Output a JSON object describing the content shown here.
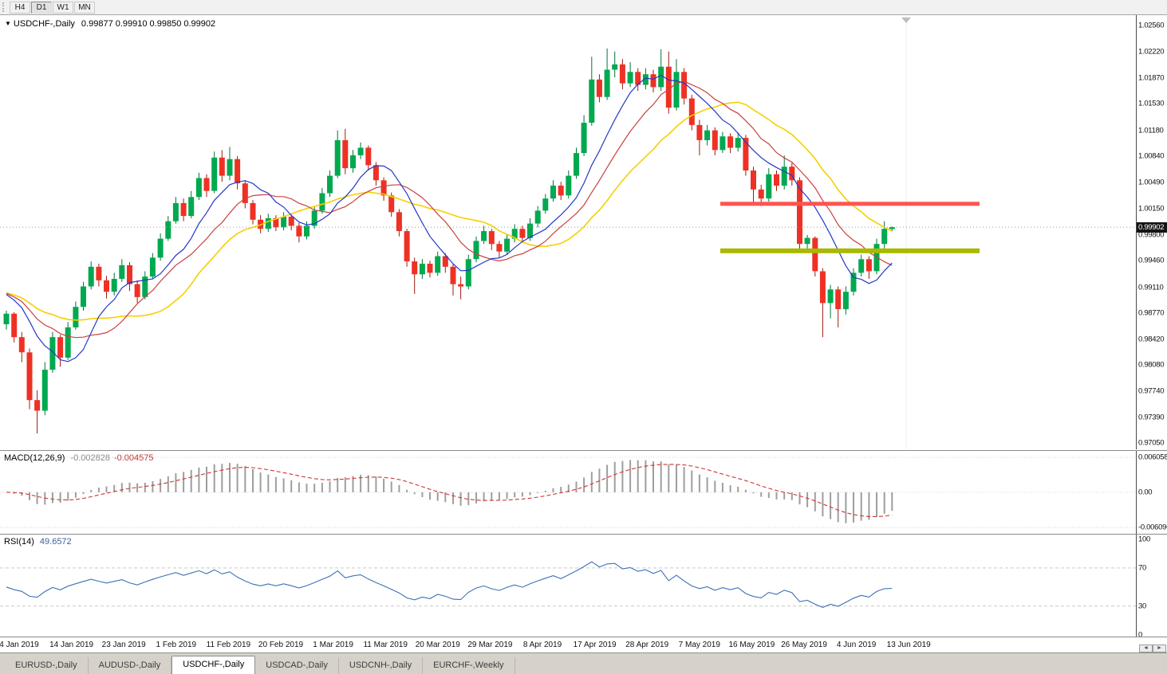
{
  "toolbar": {
    "periods": [
      {
        "label": "H4",
        "active": false
      },
      {
        "label": "D1",
        "active": true
      },
      {
        "label": "W1",
        "active": false
      },
      {
        "label": "MN",
        "active": false
      }
    ]
  },
  "window": {
    "title_marker": "▼",
    "symbol_title": "USDCHF-,Daily",
    "ohlc_text": "0.99877 0.99910 0.99850 0.99902"
  },
  "price_axis": {
    "ticks": [
      "1.02560",
      "1.02220",
      "1.01870",
      "1.01530",
      "1.01180",
      "1.00840",
      "1.00490",
      "1.00150",
      "0.99800",
      "0.99460",
      "0.99110",
      "0.98770",
      "0.98420",
      "0.98080",
      "0.97740",
      "0.97390",
      "0.97050"
    ],
    "current_badge": "0.99902"
  },
  "macd_panel": {
    "name": "MACD(12,26,9)",
    "main_value": "-0.002828",
    "signal_value": "-0.004575",
    "ticks": [
      "0.006058",
      "0.00",
      "-0.006096"
    ]
  },
  "rsi_panel": {
    "name": "RSI(14)",
    "value": "49.6572",
    "ticks": [
      "100",
      "70",
      "30",
      "0"
    ]
  },
  "date_axis": [
    "4 Jan 2019",
    "14 Jan 2019",
    "23 Jan 2019",
    "1 Feb 2019",
    "11 Feb 2019",
    "20 Feb 2019",
    "1 Mar 2019",
    "11 Mar 2019",
    "20 Mar 2019",
    "29 Mar 2019",
    "8 Apr 2019",
    "17 Apr 2019",
    "28 Apr 2019",
    "7 May 2019",
    "16 May 2019",
    "26 May 2019",
    "4 Jun 2019",
    "13 Jun 2019"
  ],
  "scrollbar": {
    "left": "◄",
    "right": "►"
  },
  "tabs": [
    {
      "label": "EURUSD-,Daily",
      "active": false
    },
    {
      "label": "AUDUSD-,Daily",
      "active": false
    },
    {
      "label": "USDCHF-,Daily",
      "active": true
    },
    {
      "label": "USDCAD-,Daily",
      "active": false
    },
    {
      "label": "USDCNH-,Daily",
      "active": false
    },
    {
      "label": "EURCHF-,Weekly",
      "active": false
    }
  ],
  "chart_data": {
    "type": "candlestick",
    "symbol": "USDCHF-",
    "timeframe": "Daily",
    "current_bar": {
      "open": 0.99877,
      "high": 0.9991,
      "low": 0.9985,
      "close": 0.99902
    },
    "y_axis": {
      "draw_max": 1.027,
      "draw_min": 0.9697,
      "top_label": 1.0256,
      "bottom_label": 0.9705
    },
    "moving_averages": [
      {
        "name": "fast",
        "period": 8,
        "color": "#2438c8",
        "width": 1.2
      },
      {
        "name": "medium",
        "period": 13,
        "color": "#c94040",
        "width": 1.2
      },
      {
        "name": "slow",
        "period": 21,
        "color": "#f5d000",
        "width": 1.6
      }
    ],
    "horizontal_lines": [
      {
        "price": 1.0021,
        "color": "#ff5450",
        "thickness": 5
      },
      {
        "price": 0.9959,
        "color": "#a9b800",
        "thickness": 6
      }
    ],
    "macd": {
      "fast": 12,
      "slow": 26,
      "signal_period": 9,
      "main_value": -0.002828,
      "signal_value": -0.004575,
      "ax_max": 0.006058,
      "ax_min": -0.006096
    },
    "rsi": {
      "period": 14,
      "value": 49.6572,
      "levels": [
        70,
        30
      ]
    },
    "candles": [
      [
        0.9862,
        0.988,
        0.9855,
        0.9876
      ],
      [
        0.9876,
        0.9878,
        0.9838,
        0.9845
      ],
      [
        0.9845,
        0.9852,
        0.9812,
        0.9825
      ],
      [
        0.9825,
        0.983,
        0.975,
        0.9762
      ],
      [
        0.9762,
        0.9775,
        0.9718,
        0.9748
      ],
      [
        0.9748,
        0.9812,
        0.9742,
        0.9802
      ],
      [
        0.9802,
        0.9852,
        0.9798,
        0.9845
      ],
      [
        0.9845,
        0.9848,
        0.9806,
        0.9818
      ],
      [
        0.9818,
        0.9865,
        0.9815,
        0.9858
      ],
      [
        0.9858,
        0.9892,
        0.9855,
        0.9885
      ],
      [
        0.9885,
        0.9918,
        0.988,
        0.9912
      ],
      [
        0.9912,
        0.9945,
        0.9908,
        0.9938
      ],
      [
        0.9938,
        0.9942,
        0.9912,
        0.992
      ],
      [
        0.992,
        0.9926,
        0.9896,
        0.9905
      ],
      [
        0.9905,
        0.993,
        0.99,
        0.9922
      ],
      [
        0.9922,
        0.9948,
        0.9918,
        0.994
      ],
      [
        0.994,
        0.9944,
        0.9906,
        0.9915
      ],
      [
        0.9915,
        0.992,
        0.989,
        0.9898
      ],
      [
        0.9898,
        0.9932,
        0.9895,
        0.9925
      ],
      [
        0.9925,
        0.9956,
        0.9922,
        0.995
      ],
      [
        0.995,
        0.9982,
        0.9946,
        0.9975
      ],
      [
        0.9975,
        1.0005,
        0.9972,
        0.9998
      ],
      [
        0.9998,
        1.003,
        0.9995,
        1.0022
      ],
      [
        1.0022,
        1.0028,
        0.9998,
        1.0005
      ],
      [
        1.0005,
        1.0038,
        1.0002,
        1.003
      ],
      [
        1.003,
        1.0062,
        1.0026,
        1.0055
      ],
      [
        1.0055,
        1.006,
        1.003,
        1.0038
      ],
      [
        1.0038,
        1.009,
        1.0035,
        1.0082
      ],
      [
        1.0082,
        1.0092,
        1.005,
        1.0058
      ],
      [
        1.0058,
        1.0096,
        1.0052,
        1.008
      ],
      [
        1.008,
        1.0084,
        1.004,
        1.0048
      ],
      [
        1.0048,
        1.0052,
        1.0015,
        1.0022
      ],
      [
        1.0022,
        1.0026,
        0.9994,
        1.0
      ],
      [
        1.0,
        1.0006,
        0.9982,
        0.9988
      ],
      [
        0.9988,
        1.0008,
        0.9984,
        1.0002
      ],
      [
        1.0002,
        1.0006,
        0.9985,
        0.999
      ],
      [
        0.999,
        1.001,
        0.9986,
        1.0004
      ],
      [
        1.0004,
        1.0008,
        0.9986,
        0.9992
      ],
      [
        0.9992,
        0.9996,
        0.997,
        0.9978
      ],
      [
        0.9978,
        0.9998,
        0.9974,
        0.9992
      ],
      [
        0.9992,
        1.0018,
        0.9988,
        1.0012
      ],
      [
        1.0012,
        1.0042,
        1.0008,
        1.0035
      ],
      [
        1.0035,
        1.0065,
        1.003,
        1.0058
      ],
      [
        1.0058,
        1.0118,
        1.0055,
        1.0105
      ],
      [
        1.0105,
        1.012,
        1.006,
        1.0068
      ],
      [
        1.0068,
        1.0092,
        1.0062,
        1.0085
      ],
      [
        1.0085,
        1.0102,
        1.008,
        1.0095
      ],
      [
        1.0095,
        1.0098,
        1.0065,
        1.0072
      ],
      [
        1.0072,
        1.0076,
        1.0045,
        1.0052
      ],
      [
        1.0052,
        1.0056,
        1.0025,
        1.0032
      ],
      [
        1.0032,
        1.0036,
        1.0004,
        1.001
      ],
      [
        1.001,
        1.0014,
        0.9978,
        0.9985
      ],
      [
        0.9985,
        0.9988,
        0.9938,
        0.9945
      ],
      [
        0.9945,
        0.995,
        0.9902,
        0.9928
      ],
      [
        0.9928,
        0.9948,
        0.9922,
        0.9942
      ],
      [
        0.9942,
        0.9946,
        0.9924,
        0.993
      ],
      [
        0.993,
        0.9958,
        0.9926,
        0.9952
      ],
      [
        0.9952,
        0.9956,
        0.993,
        0.9938
      ],
      [
        0.9938,
        0.9942,
        0.99,
        0.9915
      ],
      [
        0.9915,
        0.9925,
        0.9895,
        0.9912
      ],
      [
        0.9912,
        0.9954,
        0.9908,
        0.9948
      ],
      [
        0.9948,
        0.9978,
        0.9944,
        0.9972
      ],
      [
        0.9972,
        0.9992,
        0.9968,
        0.9985
      ],
      [
        0.9985,
        0.9988,
        0.996,
        0.9968
      ],
      [
        0.9968,
        0.9972,
        0.995,
        0.9958
      ],
      [
        0.9958,
        0.998,
        0.9954,
        0.9975
      ],
      [
        0.9975,
        0.9994,
        0.997,
        0.9988
      ],
      [
        0.9988,
        0.9992,
        0.997,
        0.9976
      ],
      [
        0.9976,
        1.0002,
        0.9972,
        0.9995
      ],
      [
        0.9995,
        1.0018,
        0.999,
        1.0012
      ],
      [
        1.0012,
        1.0034,
        1.0008,
        1.0028
      ],
      [
        1.0028,
        1.0052,
        1.0024,
        1.0045
      ],
      [
        1.0045,
        1.005,
        1.0026,
        1.0032
      ],
      [
        1.0032,
        1.0065,
        1.0028,
        1.0058
      ],
      [
        1.0058,
        1.0095,
        1.0054,
        1.0088
      ],
      [
        1.0088,
        1.0138,
        1.0084,
        1.0128
      ],
      [
        1.0128,
        1.0215,
        1.0124,
        1.0185
      ],
      [
        1.0185,
        1.0192,
        1.0155,
        1.0162
      ],
      [
        1.0162,
        1.0226,
        1.0158,
        1.0198
      ],
      [
        1.0198,
        1.0222,
        1.0188,
        1.0205
      ],
      [
        1.0205,
        1.0212,
        1.0172,
        1.018
      ],
      [
        1.018,
        1.0208,
        1.0175,
        1.0195
      ],
      [
        1.0195,
        1.02,
        1.017,
        1.0178
      ],
      [
        1.0178,
        1.02,
        1.0172,
        1.0192
      ],
      [
        1.0192,
        1.0198,
        1.0168,
        1.0175
      ],
      [
        1.0175,
        1.0225,
        1.017,
        1.0202
      ],
      [
        1.0202,
        1.0222,
        1.014,
        1.0148
      ],
      [
        1.0148,
        1.0212,
        1.0144,
        1.0195
      ],
      [
        1.0195,
        1.02,
        1.0152,
        1.016
      ],
      [
        1.016,
        1.0165,
        1.0118,
        1.0125
      ],
      [
        1.0125,
        1.0132,
        1.0085,
        1.0105
      ],
      [
        1.0105,
        1.0125,
        1.0098,
        1.0118
      ],
      [
        1.0118,
        1.0122,
        1.0085,
        1.0092
      ],
      [
        1.0092,
        1.0116,
        1.0088,
        1.011
      ],
      [
        1.011,
        1.0114,
        1.0088,
        1.0095
      ],
      [
        1.0095,
        1.0115,
        1.009,
        1.0108
      ],
      [
        1.0108,
        1.0112,
        1.0058,
        1.0065
      ],
      [
        1.0065,
        1.007,
        1.0022,
        1.004
      ],
      [
        1.004,
        1.0046,
        1.0018,
        1.0028
      ],
      [
        1.0028,
        1.0068,
        1.0024,
        1.006
      ],
      [
        1.006,
        1.0065,
        1.0038,
        1.0045
      ],
      [
        1.0045,
        1.0085,
        1.004,
        1.007
      ],
      [
        1.007,
        1.0075,
        1.0045,
        1.0052
      ],
      [
        1.0052,
        1.0056,
        0.9958,
        0.9968
      ],
      [
        0.9968,
        0.998,
        0.9958,
        0.9976
      ],
      [
        0.9976,
        0.9978,
        0.9925,
        0.9932
      ],
      [
        0.9932,
        0.9936,
        0.9845,
        0.989
      ],
      [
        0.989,
        0.9914,
        0.987,
        0.9908
      ],
      [
        0.9908,
        0.9912,
        0.9858,
        0.9882
      ],
      [
        0.9882,
        0.9912,
        0.9875,
        0.9905
      ],
      [
        0.9905,
        0.9936,
        0.99,
        0.993
      ],
      [
        0.993,
        0.9954,
        0.9925,
        0.9948
      ],
      [
        0.9948,
        0.9952,
        0.9922,
        0.9932
      ],
      [
        0.9932,
        0.9975,
        0.9928,
        0.9968
      ],
      [
        0.9968,
        0.9998,
        0.996,
        0.9988
      ],
      [
        0.99877,
        0.9991,
        0.9985,
        0.99902
      ]
    ]
  }
}
